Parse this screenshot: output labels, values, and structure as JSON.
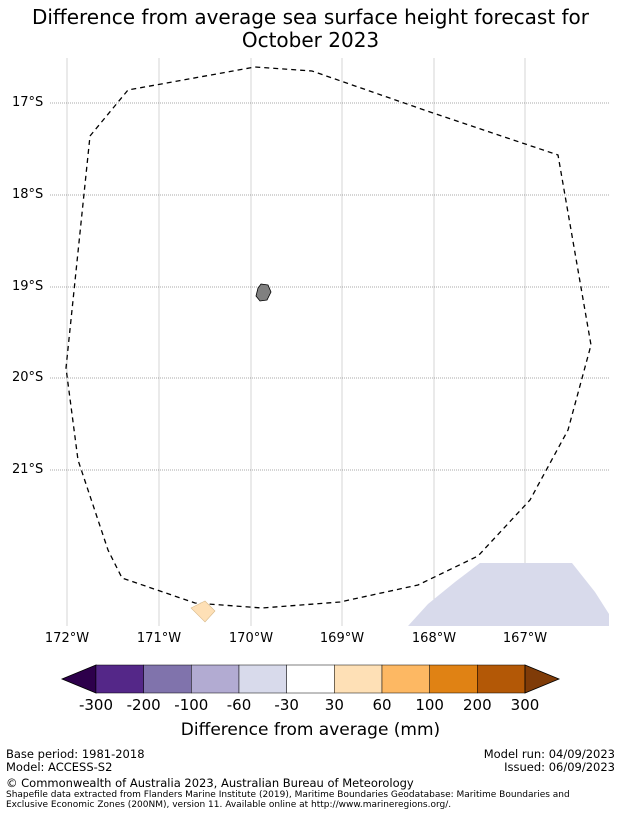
{
  "title_line1": "Difference from average sea surface height forecast for",
  "title_line2": "October 2023",
  "map": {
    "lat_labels": [
      "17°S",
      "18°S",
      "19°S",
      "20°S",
      "21°S"
    ],
    "lon_labels": [
      "172°W",
      "171°W",
      "170°W",
      "169°W",
      "168°W",
      "167°W"
    ],
    "colors": {
      "eez_boundary": "#000000",
      "land": "#808080",
      "positive_patch": "#fee0b6",
      "negative_patch": "#d8daeb"
    }
  },
  "colorbar": {
    "title": "Difference from average (mm)",
    "tick_labels": [
      "-300",
      "-200",
      "-100",
      "-60",
      "-30",
      "30",
      "60",
      "100",
      "200",
      "300"
    ],
    "colors": [
      "#2d004b",
      "#542788",
      "#8073ac",
      "#b2abd2",
      "#d8daeb",
      "#ffffff",
      "#fee0b6",
      "#fdb863",
      "#e08214",
      "#b35806",
      "#7f3b08"
    ]
  },
  "footer": {
    "base_period": "Base period: 1981-2018",
    "model": "Model: ACCESS-S2",
    "model_run": "Model run: 04/09/2023",
    "issued": "Issued: 06/09/2023",
    "copyright": "© Commonwealth of Australia 2023, Australian Bureau of Meteorology",
    "source_line1": "Shapefile data extracted from Flanders Marine Institute (2019), Maritime Boundaries Geodatabase: Maritime Boundaries and",
    "source_line2": "Exclusive Economic Zones (200NM), version 11. Available online at http://www.marineregions.org/."
  }
}
